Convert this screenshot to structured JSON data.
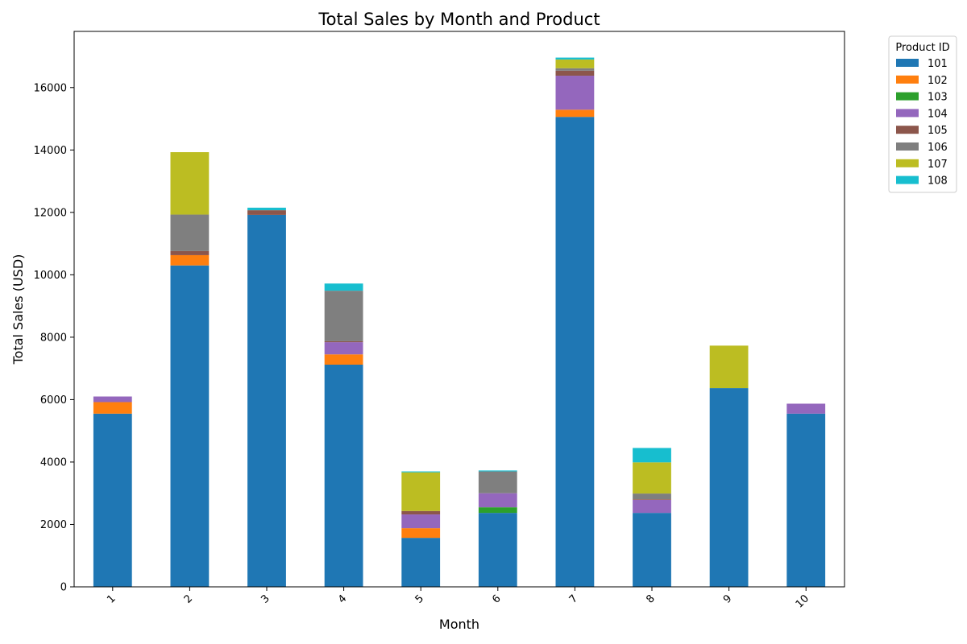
{
  "chart_data": {
    "type": "bar",
    "stacked": true,
    "title": "Total Sales by Month and Product",
    "xlabel": "Month",
    "ylabel": "Total Sales (USD)",
    "ylim": [
      0,
      17800
    ],
    "yticks": [
      0,
      2000,
      4000,
      6000,
      8000,
      10000,
      12000,
      14000,
      16000
    ],
    "categories": [
      "1",
      "2",
      "3",
      "4",
      "5",
      "6",
      "7",
      "8",
      "9",
      "10"
    ],
    "legend": {
      "title": "Product ID",
      "placement": "outside-top-right"
    },
    "grid": false,
    "series": [
      {
        "name": "101",
        "color": "#1f77b4",
        "values": [
          5550,
          10300,
          11920,
          7120,
          1570,
          2370,
          15060,
          2370,
          6370,
          5550
        ]
      },
      {
        "name": "102",
        "color": "#ff7f0e",
        "values": [
          370,
          330,
          0,
          330,
          310,
          0,
          230,
          0,
          0,
          0
        ]
      },
      {
        "name": "103",
        "color": "#2ca02c",
        "values": [
          0,
          0,
          0,
          0,
          0,
          180,
          0,
          0,
          0,
          0
        ]
      },
      {
        "name": "104",
        "color": "#9467bd",
        "values": [
          180,
          0,
          0,
          390,
          440,
          450,
          1090,
          420,
          0,
          320
        ]
      },
      {
        "name": "105",
        "color": "#8c564b",
        "values": [
          0,
          130,
          150,
          30,
          110,
          0,
          160,
          20,
          0,
          0
        ]
      },
      {
        "name": "106",
        "color": "#7f7f7f",
        "values": [
          0,
          1170,
          0,
          1620,
          0,
          700,
          80,
          180,
          0,
          0
        ]
      },
      {
        "name": "107",
        "color": "#bcbd22",
        "values": [
          0,
          2000,
          0,
          0,
          1240,
          0,
          280,
          1000,
          1360,
          0
        ]
      },
      {
        "name": "108",
        "color": "#17becf",
        "values": [
          0,
          0,
          80,
          230,
          30,
          30,
          60,
          460,
          0,
          0
        ]
      }
    ]
  }
}
